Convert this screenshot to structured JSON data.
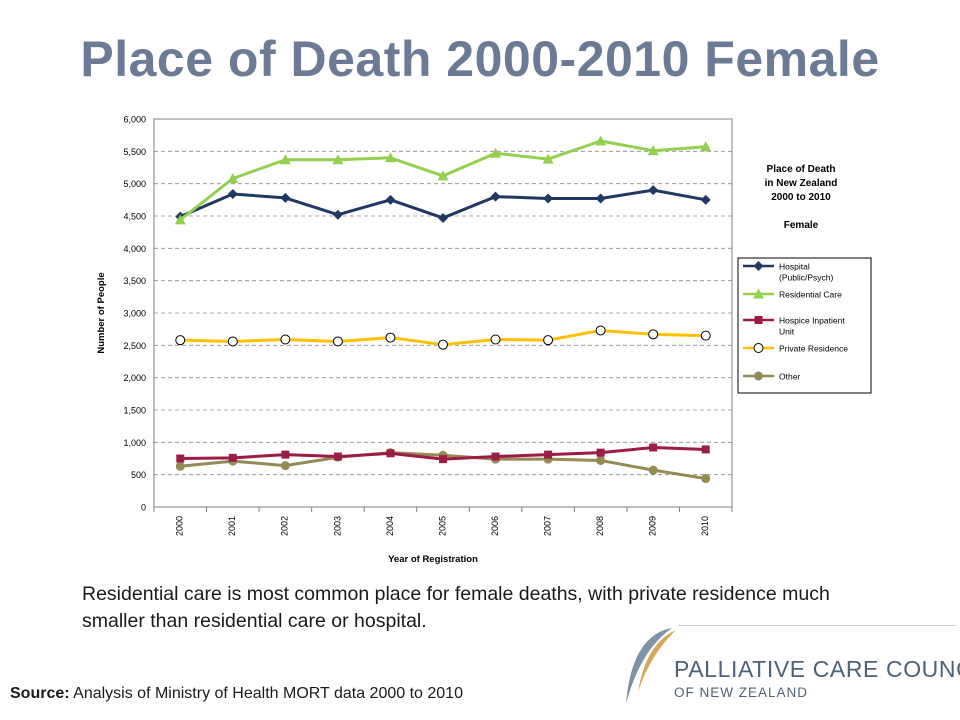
{
  "slide": {
    "title": "Place of Death 2000-2010 Female",
    "caption": "Residential care is most common place for female deaths, with private residence much smaller than residential care or hospital.",
    "source_label": "Source:",
    "source_text": " Analysis of Ministry of Health MORT data 2000 to 2010"
  },
  "logo": {
    "line1": "PALLIATIVE CARE COUNCIL",
    "line2": "OF NEW ZEALAND"
  },
  "chart_data": {
    "type": "line",
    "title_lines": [
      "Place of Death",
      "in New Zealand",
      "2000 to 2010",
      "",
      "Female"
    ],
    "xlabel": "Year of Registration",
    "ylabel": "Number of People",
    "ylim": [
      0,
      6000
    ],
    "yticks": [
      0,
      500,
      1000,
      1500,
      2000,
      2500,
      3000,
      3500,
      4000,
      4500,
      5000,
      5500,
      6000
    ],
    "categories": [
      "2000",
      "2001",
      "2002",
      "2003",
      "2004",
      "2005",
      "2006",
      "2007",
      "2008",
      "2009",
      "2010"
    ],
    "grid": "horizontal dashed",
    "legend_position": "right",
    "series": [
      {
        "name": "Hospital (Public/Psych)",
        "legend_lines": [
          "Hospital",
          "(Public/Psych)"
        ],
        "color": "#1f3864",
        "marker": "diamond",
        "values": [
          4490,
          4840,
          4780,
          4520,
          4750,
          4470,
          4800,
          4770,
          4770,
          4900,
          4750
        ]
      },
      {
        "name": "Residential Care",
        "legend_lines": [
          "Residential Care"
        ],
        "color": "#92d050",
        "marker": "triangle",
        "values": [
          4440,
          5080,
          5370,
          5370,
          5400,
          5120,
          5470,
          5380,
          5660,
          5510,
          5570
        ]
      },
      {
        "name": "Hospice Inpatient Unit",
        "legend_lines": [
          "Hospice Inpatient",
          "Unit"
        ],
        "color": "#9b1c45",
        "marker": "square",
        "values": [
          750,
          760,
          810,
          780,
          830,
          740,
          780,
          810,
          840,
          920,
          890
        ]
      },
      {
        "name": "Private Residence",
        "legend_lines": [
          "Private Residence"
        ],
        "color": "#ffc000",
        "marker": "circle-open",
        "values": [
          2580,
          2560,
          2590,
          2560,
          2620,
          2510,
          2590,
          2580,
          2730,
          2670,
          2650
        ]
      },
      {
        "name": "Other",
        "legend_lines": [
          "Other"
        ],
        "color": "#948a54",
        "marker": "circle",
        "values": [
          630,
          710,
          640,
          770,
          840,
          800,
          740,
          740,
          720,
          570,
          440
        ]
      }
    ]
  }
}
